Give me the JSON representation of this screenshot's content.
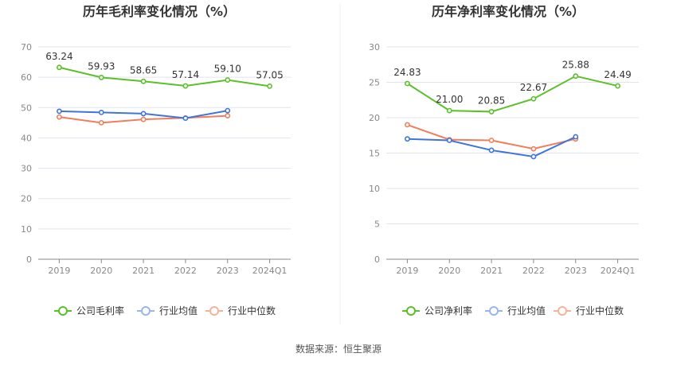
{
  "source_text": "数据来源：恒生聚源",
  "chart_data": [
    {
      "type": "line",
      "title": "历年毛利率变化情况（%）",
      "categories": [
        "2019",
        "2020",
        "2021",
        "2022",
        "2023",
        "2024Q1"
      ],
      "ylim": [
        0,
        70
      ],
      "yticks": [
        0,
        10,
        20,
        30,
        40,
        50,
        60,
        70
      ],
      "grid": true,
      "legend_position": "bottom",
      "series": [
        {
          "name": "公司毛利率",
          "color": "#5cc02a",
          "values": [
            63.24,
            59.93,
            58.65,
            57.14,
            59.1,
            57.05
          ],
          "labels": [
            "63.24",
            "59.93",
            "58.65",
            "57.14",
            "59.10",
            "57.05"
          ]
        },
        {
          "name": "行业均值",
          "color": "#3f74db",
          "legend_color": "#9bb6ec",
          "values": [
            48.8,
            48.4,
            48.0,
            46.5,
            49.0,
            null
          ]
        },
        {
          "name": "行业中位数",
          "color": "#f07e5a",
          "legend_color": "#f7b29c",
          "values": [
            46.9,
            45.0,
            46.1,
            46.6,
            47.3,
            null
          ]
        }
      ]
    },
    {
      "type": "line",
      "title": "历年净利率变化情况（%）",
      "categories": [
        "2019",
        "2020",
        "2021",
        "2022",
        "2023",
        "2024Q1"
      ],
      "ylim": [
        0,
        30
      ],
      "yticks": [
        0,
        5,
        10,
        15,
        20,
        25,
        30
      ],
      "grid": true,
      "legend_position": "bottom",
      "series": [
        {
          "name": "公司净利率",
          "color": "#5cc02a",
          "values": [
            24.83,
            21.0,
            20.85,
            22.67,
            25.88,
            24.49
          ],
          "labels": [
            "24.83",
            "21.00",
            "20.85",
            "22.67",
            "25.88",
            "24.49"
          ]
        },
        {
          "name": "行业均值",
          "color": "#3f74db",
          "legend_color": "#9bb6ec",
          "values": [
            17.0,
            16.8,
            15.4,
            14.5,
            17.3,
            null
          ]
        },
        {
          "name": "行业中位数",
          "color": "#f07e5a",
          "legend_color": "#f7b29c",
          "values": [
            19.0,
            16.9,
            16.8,
            15.6,
            17.0,
            null
          ]
        }
      ]
    }
  ]
}
